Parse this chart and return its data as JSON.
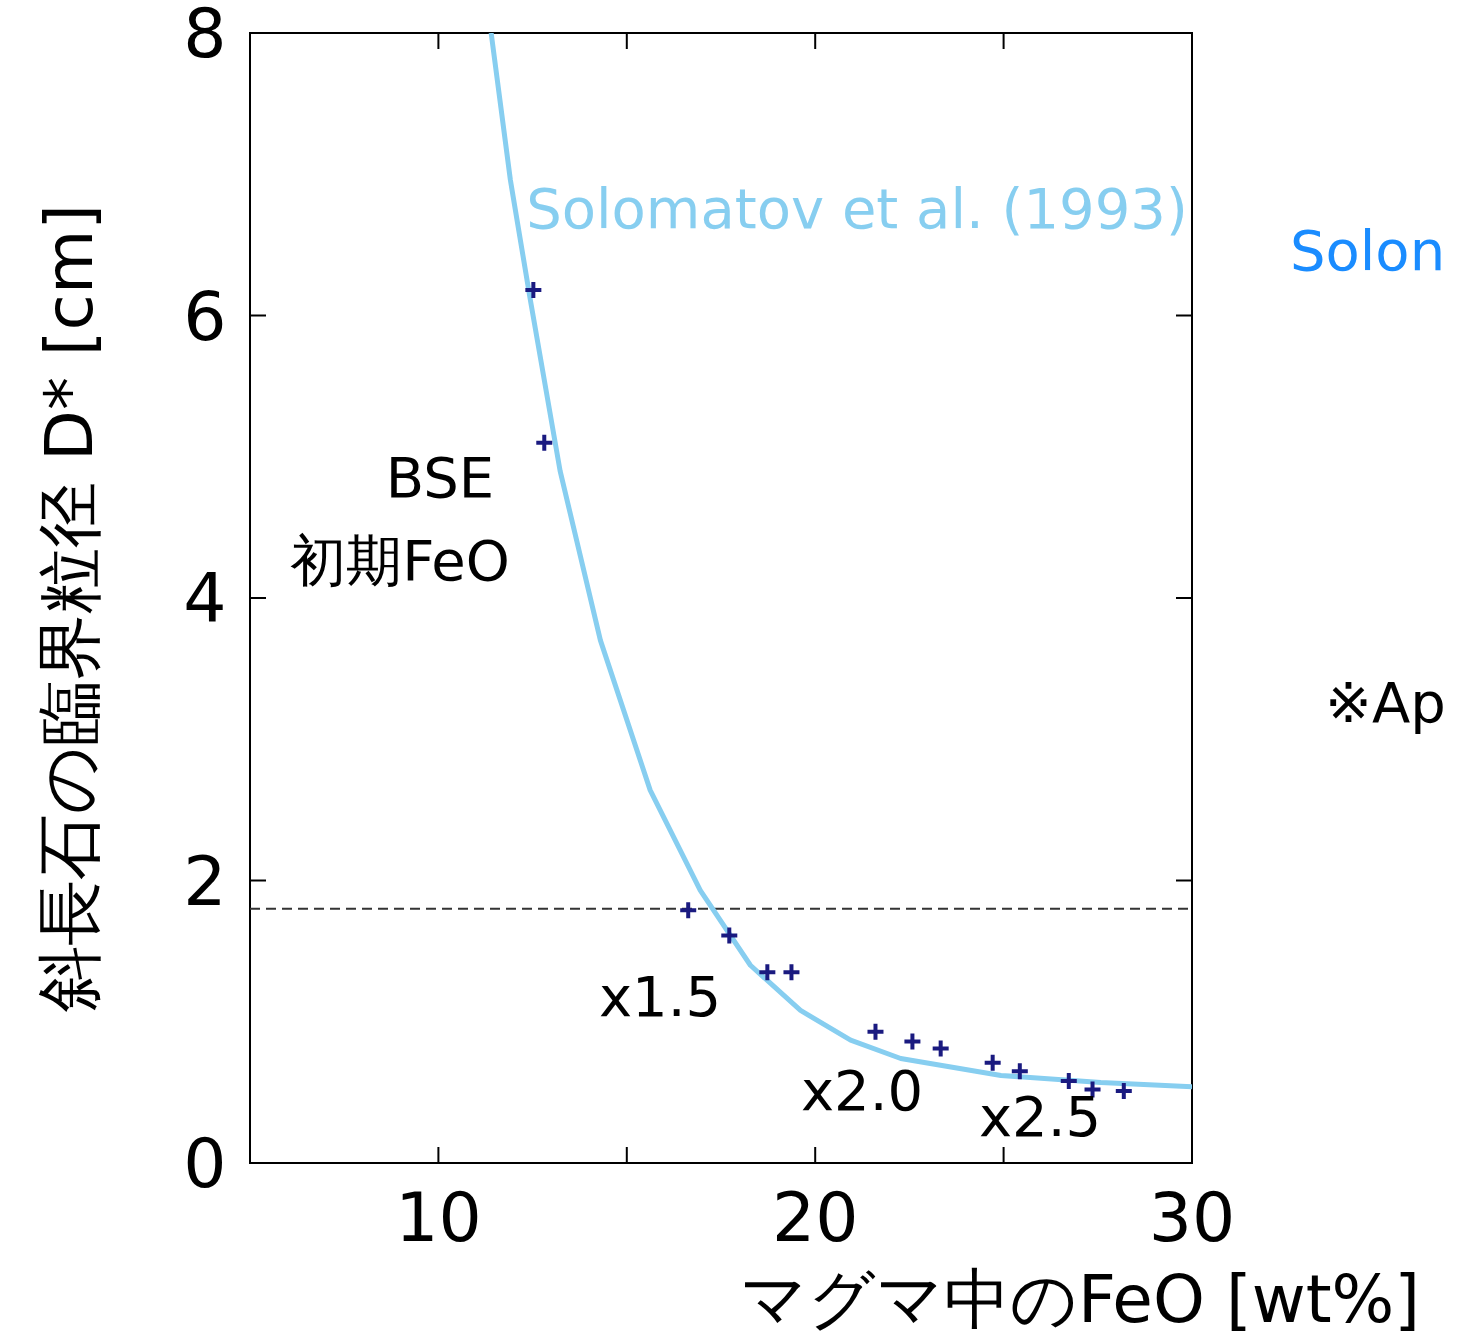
{
  "chart_data": {
    "type": "scatter",
    "xlabel": "マグマ中のFeO [wt%]",
    "ylabel": "斜長石の臨界粒径 D* [cm]",
    "xlim": [
      5,
      30
    ],
    "ylim": [
      0,
      8
    ],
    "xticks": [
      10,
      {
        "value": 15,
        "label": null
      },
      20,
      {
        "value": 25,
        "label": null
      },
      30
    ],
    "yticks": [
      0,
      2,
      4,
      6,
      8
    ],
    "grid": false,
    "tick_labels": true,
    "series": [
      {
        "type": "scatter",
        "color": "#1a1a80",
        "marker": "cross",
        "x": [
          12.52,
          12.81,
          16.63,
          17.72,
          18.73,
          19.37,
          21.6,
          22.58,
          23.33,
          24.71,
          25.43,
          26.73,
          27.36,
          28.19
        ],
        "values": [
          6.18,
          5.1,
          1.79,
          1.61,
          1.35,
          1.35,
          0.93,
          0.86,
          0.81,
          0.71,
          0.65,
          0.58,
          0.52,
          0.51
        ]
      },
      {
        "type": "line",
        "name": "Solomatov et al. (1993)",
        "color": "#87cef0",
        "line_style": "solid",
        "x": [
          11.4,
          11.91,
          12.44,
          13.23,
          14.3,
          15.62,
          16.95,
          18.28,
          19.61,
          20.94,
          22.27,
          24.93,
          27.58,
          30.0
        ],
        "values": [
          8.0,
          6.96,
          6.11,
          4.9,
          3.7,
          2.64,
          1.93,
          1.4,
          1.08,
          0.87,
          0.74,
          0.62,
          0.57,
          0.54
        ]
      }
    ],
    "ref_lines": [
      {
        "axis": "y",
        "value": 1.8,
        "color": "#333333",
        "line_style": "dashed"
      }
    ],
    "annotations": [
      "BSE",
      "初期FeO",
      "x1.5",
      "x2.0",
      "x2.5",
      "Solon",
      "※Ap"
    ]
  }
}
